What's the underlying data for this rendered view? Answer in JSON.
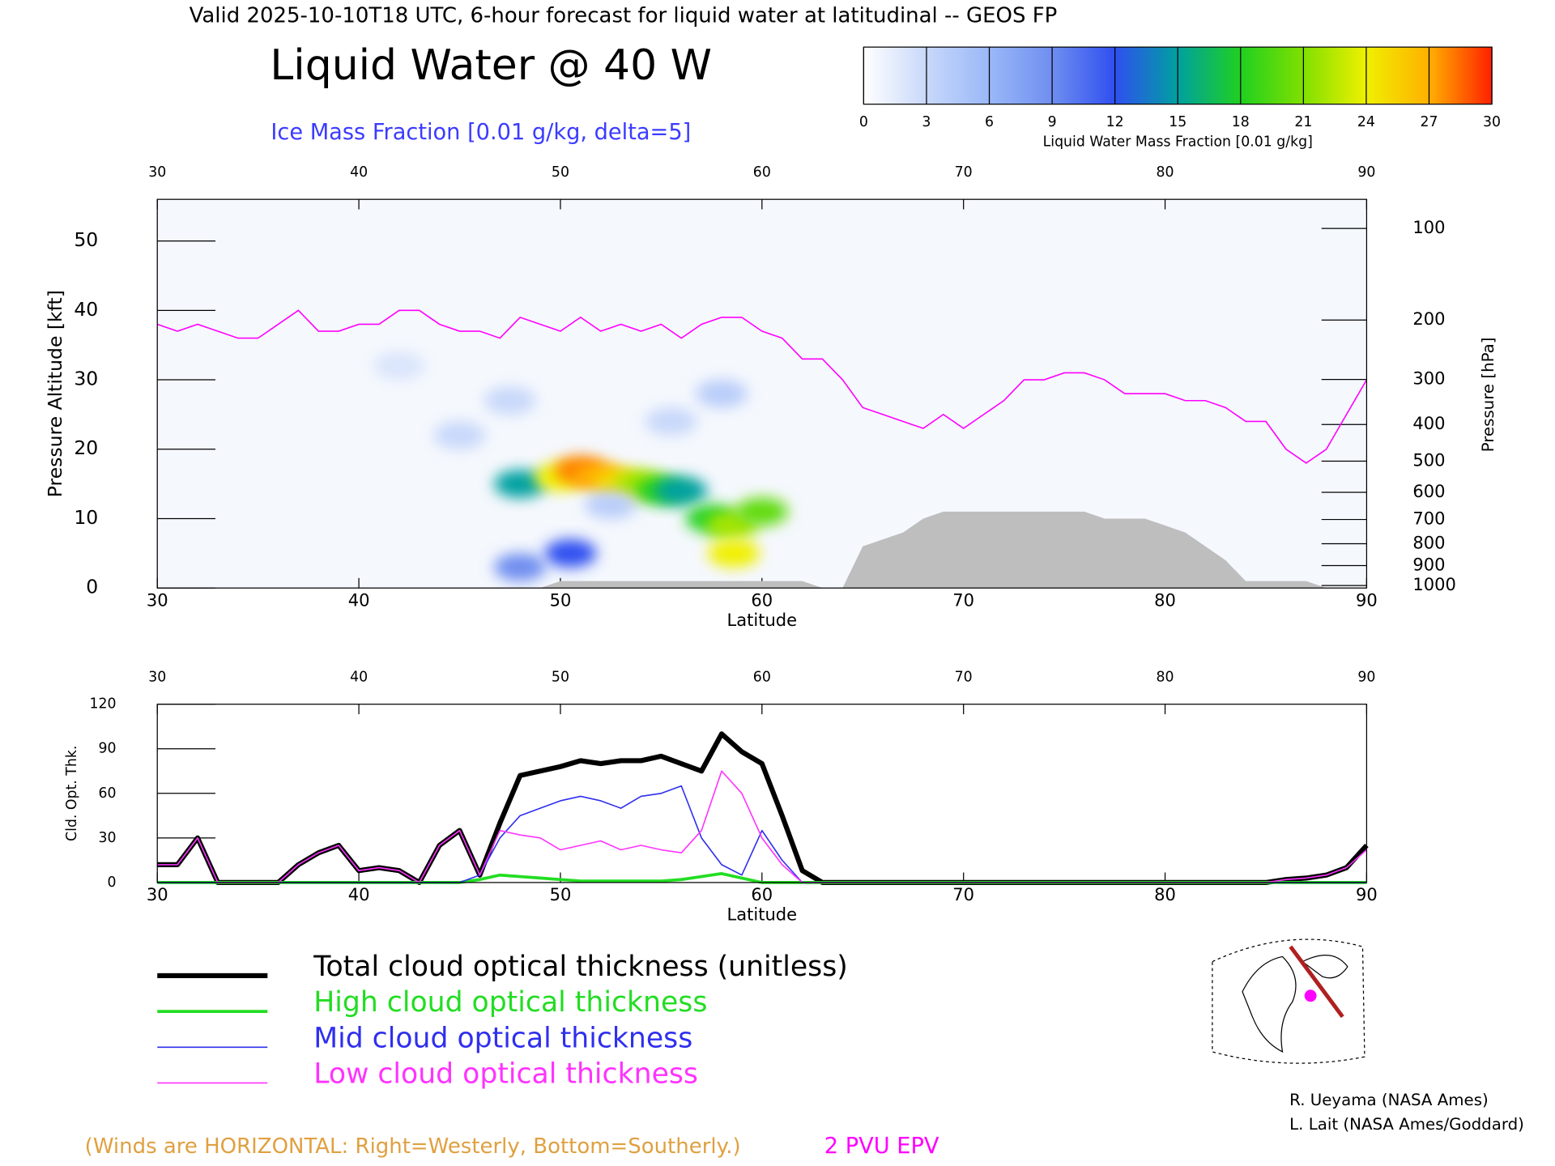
{
  "header": {
    "title": "Valid 2025-10-10T18 UTC, 6-hour forecast for liquid water at latitudinal -- GEOS FP"
  },
  "chart_data": [
    {
      "type": "heatmap",
      "title": "Liquid Water @ 40 W",
      "subtitle": "Ice Mass Fraction [0.01 g/kg, delta=5]",
      "xlabel": "Latitude",
      "ylabel": "Pressure Altitude [kft]",
      "y2label": "Pressure [hPa]",
      "xlim": [
        30,
        90
      ],
      "xticks": [
        30,
        40,
        50,
        60,
        70,
        80,
        90
      ],
      "ylim": [
        0,
        56
      ],
      "yticks": [
        0,
        10,
        20,
        30,
        40,
        50
      ],
      "y2scale": "pressure-altitude",
      "y2lim": [
        1013,
        83
      ],
      "y2ticks": [
        100,
        200,
        300,
        400,
        500,
        600,
        700,
        800,
        900,
        1000
      ],
      "points": {
        "x": [
          48,
          50,
          51,
          52,
          53,
          54,
          55,
          56,
          57.5,
          58.5,
          60,
          58.6,
          50.5,
          48,
          45,
          47.5,
          58,
          42,
          52.5,
          55.5
        ],
        "y": [
          15,
          16,
          17,
          16,
          15,
          15,
          14,
          14,
          10,
          9,
          11,
          5,
          5,
          3,
          22,
          27,
          28,
          32,
          12,
          24
        ],
        "values": [
          15,
          24,
          28,
          27,
          25,
          22,
          18,
          15,
          18,
          22,
          20,
          24,
          12,
          9,
          3,
          3,
          4,
          2,
          4,
          3
        ]
      },
      "colorbar": {
        "label": "Liquid Water Mass Fraction [0.01 g/kg]",
        "ticks": [
          0,
          3,
          6,
          9,
          12,
          15,
          18,
          21,
          24,
          27,
          30
        ],
        "colors": [
          "#ffffff",
          "#c8d8fa",
          "#9ab8f8",
          "#6f8ef0",
          "#2f4ff0",
          "#00a0a0",
          "#20d020",
          "#80e000",
          "#f0f000",
          "#ffb000",
          "#ff2000"
        ]
      },
      "x": [
        30,
        31,
        32,
        33,
        34,
        35,
        36,
        37,
        38,
        39,
        40,
        41,
        42,
        43,
        44,
        45,
        46,
        47,
        48,
        49,
        50,
        51,
        52,
        53,
        54,
        55,
        56,
        57,
        58,
        59,
        60,
        61,
        62,
        63,
        64,
        65,
        66,
        67,
        68,
        69,
        70,
        71,
        72,
        73,
        74,
        75,
        76,
        77,
        78,
        79,
        80,
        81,
        82,
        83,
        84,
        85,
        86,
        87,
        88,
        89,
        90
      ],
      "series": [
        {
          "name": "2 PVU EPV",
          "color": "#ff00ff",
          "values": [
            38,
            37,
            38,
            37,
            36,
            36,
            38,
            40,
            37,
            37,
            38,
            38,
            40,
            40,
            38,
            37,
            37,
            36,
            39,
            38,
            37,
            39,
            37,
            38,
            37,
            38,
            36,
            38,
            39,
            39,
            37,
            36,
            33,
            33,
            30,
            26,
            25,
            24,
            23,
            25,
            23,
            25,
            27,
            30,
            30,
            31,
            31,
            30,
            28,
            28,
            28,
            27,
            27,
            26,
            24,
            24,
            20,
            18,
            20,
            25,
            30
          ]
        },
        {
          "color": "#bebebe",
          "fill": true,
          "values": [
            0,
            0,
            0,
            0,
            0,
            0,
            0,
            0,
            0,
            0,
            0,
            0,
            0,
            0,
            0,
            0,
            0,
            0,
            0,
            0,
            1,
            1,
            1,
            1,
            1,
            1,
            1,
            1,
            1,
            1,
            1,
            1,
            1,
            0,
            0,
            6,
            7,
            8,
            10,
            11,
            11,
            11,
            11,
            11,
            11,
            11,
            11,
            10,
            10,
            10,
            9,
            8,
            6,
            4,
            1,
            1,
            1,
            1,
            0,
            0,
            0
          ]
        }
      ]
    },
    {
      "type": "line",
      "xlabel": "Latitude",
      "ylabel": "Cld. Opt. Thk.",
      "xlim": [
        30,
        90
      ],
      "xticks": [
        30,
        40,
        50,
        60,
        70,
        80,
        90
      ],
      "ylim": [
        0,
        120
      ],
      "yticks": [
        0,
        30,
        60,
        90,
        120
      ],
      "x": [
        30,
        31,
        32,
        33,
        34,
        35,
        36,
        37,
        38,
        39,
        40,
        41,
        42,
        43,
        44,
        45,
        46,
        47,
        48,
        49,
        50,
        51,
        52,
        53,
        54,
        55,
        56,
        57,
        58,
        59,
        60,
        61,
        62,
        63,
        64,
        65,
        66,
        67,
        68,
        69,
        70,
        71,
        72,
        73,
        74,
        75,
        76,
        77,
        78,
        79,
        80,
        81,
        82,
        83,
        84,
        85,
        86,
        87,
        88,
        89,
        90
      ],
      "series": [
        {
          "name": "Total cloud optical thickness (unitless)",
          "color": "#000000",
          "width": 5,
          "values": [
            12,
            12,
            30,
            0,
            0,
            0,
            0,
            12,
            20,
            25,
            8,
            10,
            8,
            0,
            25,
            35,
            5,
            40,
            72,
            75,
            78,
            82,
            80,
            82,
            82,
            85,
            80,
            75,
            100,
            88,
            80,
            45,
            8,
            0,
            0,
            0,
            0,
            0,
            0,
            0,
            0,
            0,
            0,
            0,
            0,
            0,
            0,
            0,
            0,
            0,
            0,
            0,
            0,
            0,
            0,
            0,
            2,
            3,
            5,
            10,
            25
          ]
        },
        {
          "name": "High cloud optical thickness",
          "color": "#22dd22",
          "width": 3,
          "values": [
            0,
            0,
            0,
            0,
            0,
            0,
            0,
            0,
            0,
            0,
            0,
            0,
            0,
            0,
            0,
            0,
            2,
            5,
            4,
            3,
            2,
            1,
            1,
            1,
            1,
            1,
            2,
            4,
            6,
            3,
            0,
            0,
            0,
            0,
            0,
            0,
            0,
            0,
            0,
            0,
            0,
            0,
            0,
            0,
            0,
            0,
            0,
            0,
            0,
            0,
            0,
            0,
            0,
            0,
            0,
            0,
            0,
            0,
            0,
            0,
            0
          ]
        },
        {
          "name": "Mid cloud optical thickness",
          "color": "#2f2fee",
          "width": 1.3,
          "values": [
            0,
            0,
            0,
            0,
            0,
            0,
            0,
            0,
            0,
            0,
            0,
            0,
            0,
            0,
            0,
            0,
            5,
            30,
            45,
            50,
            55,
            58,
            55,
            50,
            58,
            60,
            65,
            30,
            12,
            5,
            35,
            15,
            0,
            0,
            0,
            0,
            0,
            0,
            0,
            0,
            0,
            0,
            0,
            0,
            0,
            0,
            0,
            0,
            0,
            0,
            0,
            0,
            0,
            0,
            0,
            0,
            0,
            0,
            0,
            0,
            0
          ]
        },
        {
          "name": "Low cloud optical thickness",
          "color": "#ff33ff",
          "width": 1.3,
          "values": [
            12,
            12,
            30,
            0,
            0,
            0,
            0,
            12,
            20,
            25,
            8,
            10,
            8,
            0,
            25,
            35,
            5,
            35,
            32,
            30,
            22,
            25,
            28,
            22,
            25,
            22,
            20,
            35,
            75,
            60,
            30,
            12,
            0,
            0,
            0,
            0,
            0,
            0,
            0,
            0,
            0,
            0,
            0,
            0,
            0,
            0,
            0,
            0,
            0,
            0,
            0,
            0,
            0,
            0,
            0,
            0,
            2,
            3,
            5,
            10,
            22
          ]
        }
      ]
    }
  ],
  "annotation": "(Winds are HORIZONTAL: Right=Westerly, Bottom=Southerly.)",
  "credits": [
    "R. Ueyama (NASA Ames)",
    "L. Lait (NASA Ames/Goddard)"
  ]
}
